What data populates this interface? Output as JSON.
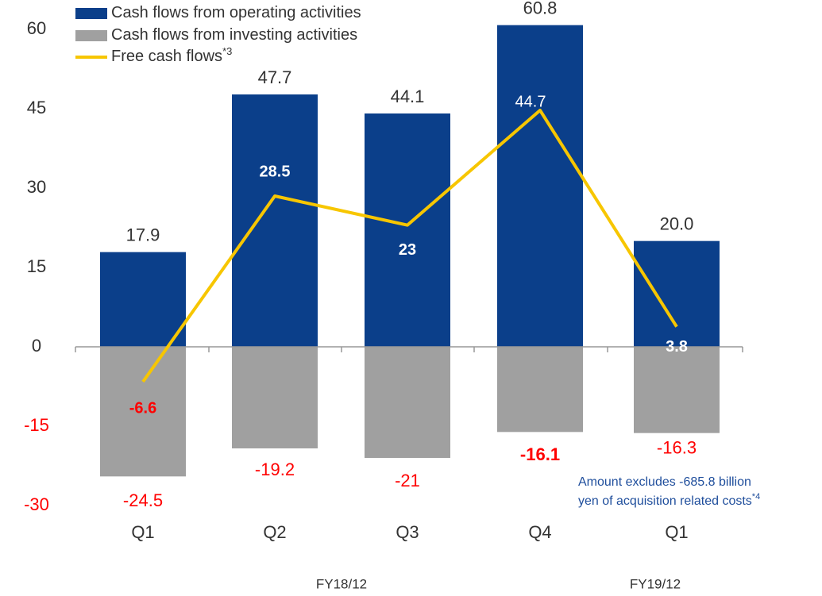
{
  "chart_data": {
    "type": "bar_line",
    "categories": [
      "Q1",
      "Q2",
      "Q3",
      "Q4",
      "Q1"
    ],
    "groups": [
      "FY18/12",
      "FY19/12"
    ],
    "series": [
      {
        "name": "Cash flows from operating activities",
        "color": "#0b3f8a",
        "values": [
          17.9,
          47.7,
          44.1,
          60.8,
          20.0
        ],
        "value_labels": [
          "17.9",
          "47.7",
          "44.1",
          "60.8",
          "20.0"
        ]
      },
      {
        "name": "Cash flows from investing activities",
        "color": "#a0a0a0",
        "values": [
          -24.5,
          -19.2,
          -21.0,
          -16.1,
          -16.3
        ]
      },
      {
        "name": "Free cash flows",
        "name_note": "*3",
        "type": "line",
        "color": "#f7c600",
        "values": [
          -6.6,
          28.5,
          23.0,
          44.7,
          3.8
        ]
      }
    ],
    "annotation": {
      "lines": [
        "Amount excludes -685.8 billion",
        "yen of acquisition related costs"
      ],
      "note": "*4"
    },
    "ylim": [
      -30,
      60
    ],
    "yticks": [
      60,
      45,
      30,
      15,
      0,
      -15,
      -30
    ]
  }
}
